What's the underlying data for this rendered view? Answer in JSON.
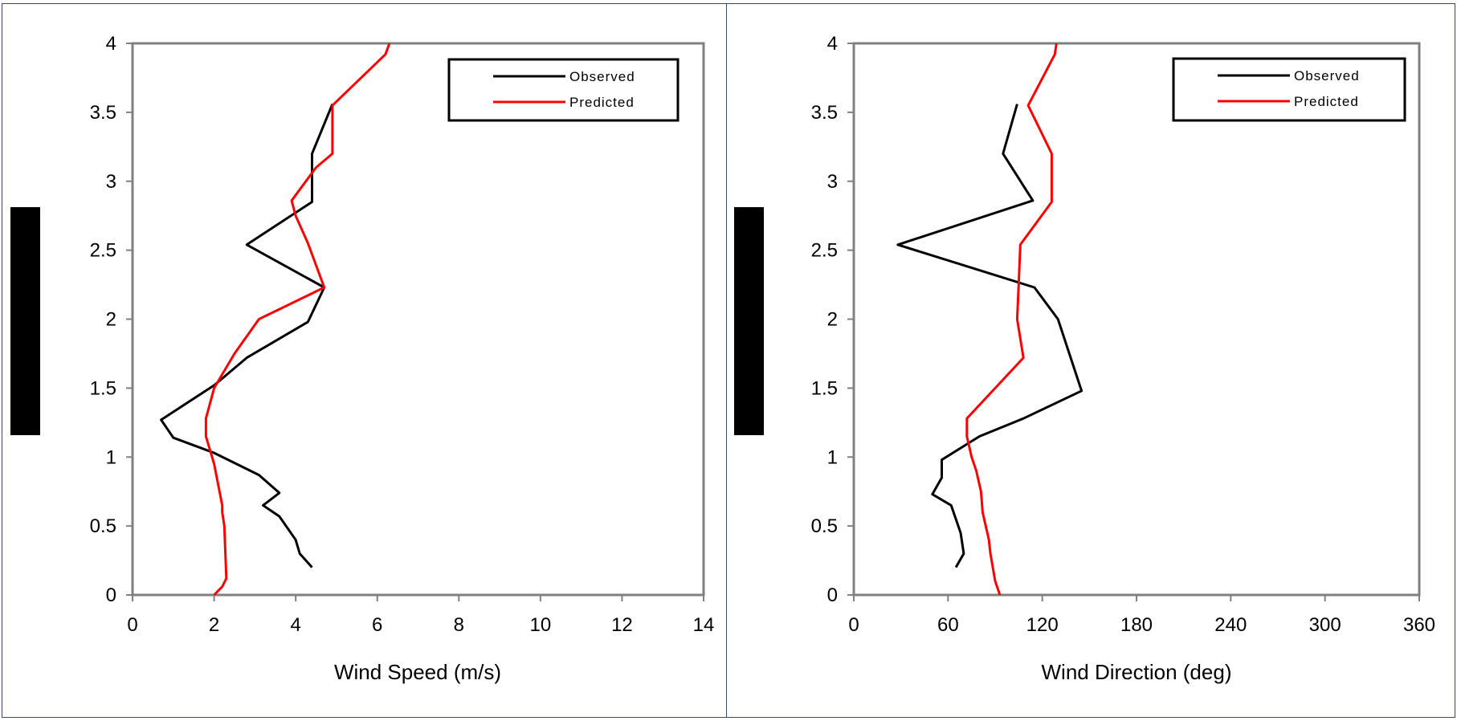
{
  "chart_data": [
    {
      "type": "line",
      "title": "",
      "xlabel": "Wind Speed (m/s)",
      "ylabel": "",
      "xlim": [
        0,
        14
      ],
      "ylim": [
        0,
        4
      ],
      "xticks": [
        "0",
        "2",
        "4",
        "6",
        "8",
        "10",
        "12",
        "14"
      ],
      "yticks": [
        "0",
        "0.5",
        "1",
        "1.5",
        "2",
        "2.5",
        "3",
        "3.5",
        "4"
      ],
      "grid": false,
      "legend": "top-right",
      "series": [
        {
          "name": "Observed",
          "color": "#000000",
          "points": [
            [
              4.4,
              0.2
            ],
            [
              4.1,
              0.3
            ],
            [
              4.0,
              0.4
            ],
            [
              3.6,
              0.57
            ],
            [
              3.2,
              0.65
            ],
            [
              3.6,
              0.74
            ],
            [
              3.1,
              0.87
            ],
            [
              2.0,
              1.03
            ],
            [
              1.0,
              1.14
            ],
            [
              0.7,
              1.27
            ],
            [
              2.0,
              1.52
            ],
            [
              2.8,
              1.72
            ],
            [
              4.3,
              1.98
            ],
            [
              4.7,
              2.23
            ],
            [
              2.8,
              2.54
            ],
            [
              4.4,
              2.85
            ],
            [
              4.4,
              3.2
            ],
            [
              4.9,
              3.56
            ]
          ]
        },
        {
          "name": "Predicted",
          "color": "#ff0000",
          "points": [
            [
              2.0,
              0.0
            ],
            [
              2.2,
              0.06
            ],
            [
              2.3,
              0.12
            ],
            [
              2.25,
              0.5
            ],
            [
              2.2,
              0.6
            ],
            [
              2.2,
              0.65
            ],
            [
              2.0,
              0.95
            ],
            [
              1.8,
              1.15
            ],
            [
              1.8,
              1.28
            ],
            [
              2.0,
              1.5
            ],
            [
              2.5,
              1.75
            ],
            [
              3.1,
              2.0
            ],
            [
              4.7,
              2.23
            ],
            [
              4.3,
              2.55
            ],
            [
              4.0,
              2.75
            ],
            [
              3.9,
              2.86
            ],
            [
              4.5,
              3.1
            ],
            [
              4.9,
              3.2
            ],
            [
              4.9,
              3.55
            ],
            [
              6.2,
              3.92
            ],
            [
              6.3,
              4.0
            ]
          ]
        }
      ]
    },
    {
      "type": "line",
      "title": "",
      "xlabel": "Wind Direction (deg)",
      "ylabel": "",
      "xlim": [
        0,
        360
      ],
      "ylim": [
        0,
        4
      ],
      "xticks": [
        "0",
        "60",
        "120",
        "180",
        "240",
        "300",
        "360"
      ],
      "yticks": [
        "0",
        "0.5",
        "1",
        "1.5",
        "2",
        "2.5",
        "3",
        "3.5",
        "4"
      ],
      "grid": false,
      "legend": "top-right",
      "series": [
        {
          "name": "Observed",
          "color": "#000000",
          "points": [
            [
              65,
              0.2
            ],
            [
              70,
              0.3
            ],
            [
              68,
              0.45
            ],
            [
              65,
              0.55
            ],
            [
              62,
              0.65
            ],
            [
              50,
              0.73
            ],
            [
              56,
              0.85
            ],
            [
              56,
              0.98
            ],
            [
              80,
              1.15
            ],
            [
              108,
              1.28
            ],
            [
              145,
              1.48
            ],
            [
              130,
              2.0
            ],
            [
              115,
              2.23
            ],
            [
              28,
              2.54
            ],
            [
              114,
              2.86
            ],
            [
              95,
              3.2
            ],
            [
              104,
              3.56
            ]
          ]
        },
        {
          "name": "Predicted",
          "color": "#ff0000",
          "points": [
            [
              93,
              0.0
            ],
            [
              90,
              0.1
            ],
            [
              87,
              0.3
            ],
            [
              86,
              0.4
            ],
            [
              82,
              0.6
            ],
            [
              81,
              0.75
            ],
            [
              78,
              0.9
            ],
            [
              75,
              1.0
            ],
            [
              72,
              1.15
            ],
            [
              72,
              1.28
            ],
            [
              108,
              1.72
            ],
            [
              104,
              2.0
            ],
            [
              105,
              2.25
            ],
            [
              106,
              2.54
            ],
            [
              126,
              2.85
            ],
            [
              126,
              3.2
            ],
            [
              111,
              3.55
            ],
            [
              128,
              3.92
            ],
            [
              129,
              4.0
            ]
          ]
        }
      ]
    }
  ]
}
